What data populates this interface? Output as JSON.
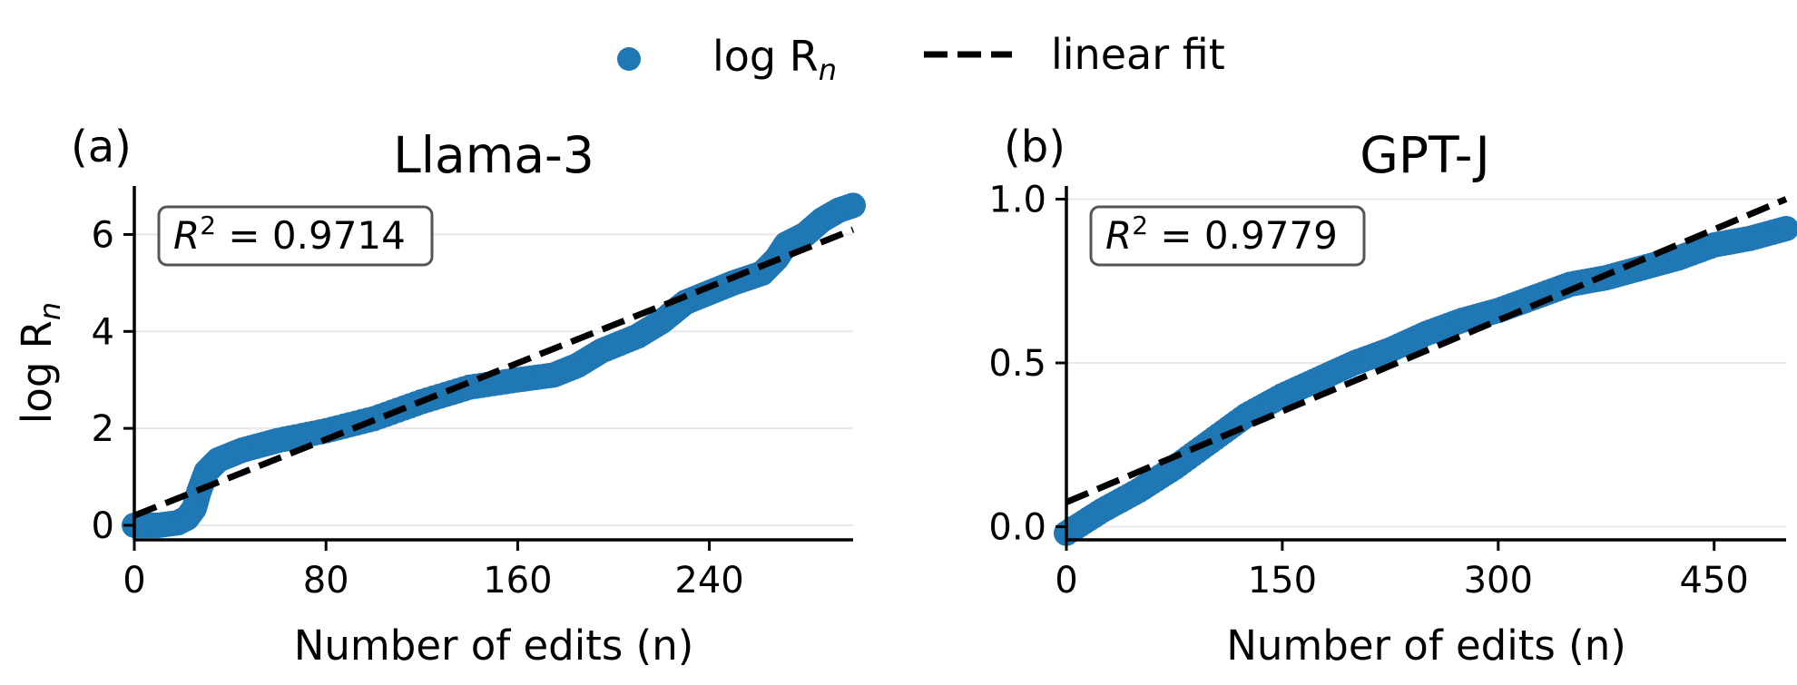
{
  "legend": {
    "series_label_base": "log R",
    "series_label_sub": "n",
    "fit_label": "linear fit",
    "point_color": "#1f77b4",
    "fit_color": "#000000"
  },
  "shared": {
    "ylabel_base": "log R",
    "ylabel_sub": "n"
  },
  "chart_data": [
    {
      "type": "scatter",
      "panel": "(a)",
      "title": "Llama-3",
      "xlabel": "Number of edits (n)",
      "xlim": [
        0,
        300
      ],
      "ylim": [
        -0.3,
        7.0
      ],
      "xticks": [
        0,
        80,
        160,
        240
      ],
      "yticks": [
        0,
        2,
        4,
        6
      ],
      "r2_label": "R",
      "r2_value": "= 0.9714",
      "grid": "y",
      "fit": {
        "x": [
          0,
          300
        ],
        "y": [
          0.2,
          6.1
        ]
      },
      "series": [
        {
          "name": "log R_n",
          "points": [
            [
              0,
              0.0
            ],
            [
              10,
              0.0
            ],
            [
              18,
              0.05
            ],
            [
              22,
              0.15
            ],
            [
              25,
              0.35
            ],
            [
              27,
              0.7
            ],
            [
              30,
              1.1
            ],
            [
              35,
              1.35
            ],
            [
              45,
              1.55
            ],
            [
              60,
              1.75
            ],
            [
              80,
              1.95
            ],
            [
              100,
              2.2
            ],
            [
              120,
              2.55
            ],
            [
              140,
              2.85
            ],
            [
              160,
              3.0
            ],
            [
              175,
              3.1
            ],
            [
              185,
              3.3
            ],
            [
              195,
              3.6
            ],
            [
              210,
              3.9
            ],
            [
              220,
              4.2
            ],
            [
              230,
              4.6
            ],
            [
              240,
              4.8
            ],
            [
              250,
              5.0
            ],
            [
              262,
              5.2
            ],
            [
              268,
              5.5
            ],
            [
              272,
              5.8
            ],
            [
              280,
              6.0
            ],
            [
              287,
              6.3
            ],
            [
              294,
              6.5
            ],
            [
              300,
              6.6
            ]
          ]
        }
      ]
    },
    {
      "type": "scatter",
      "panel": "(b)",
      "title": "GPT-J",
      "xlabel": "Number of edits (n)",
      "xlim": [
        0,
        500
      ],
      "ylim": [
        -0.04,
        1.04
      ],
      "xticks": [
        0,
        150,
        300,
        450
      ],
      "yticks": [
        0.0,
        0.5,
        1.0
      ],
      "ytick_labels": [
        "0.0",
        "0.5",
        "1.0"
      ],
      "r2_label": "R",
      "r2_value": "= 0.9779",
      "grid": "y",
      "fit": {
        "x": [
          0,
          500
        ],
        "y": [
          0.075,
          1.0
        ]
      },
      "series": [
        {
          "name": "log R_n",
          "points": [
            [
              0,
              -0.02
            ],
            [
              25,
              0.05
            ],
            [
              50,
              0.11
            ],
            [
              75,
              0.18
            ],
            [
              100,
              0.26
            ],
            [
              125,
              0.34
            ],
            [
              150,
              0.4
            ],
            [
              175,
              0.45
            ],
            [
              200,
              0.5
            ],
            [
              225,
              0.54
            ],
            [
              250,
              0.59
            ],
            [
              275,
              0.63
            ],
            [
              300,
              0.66
            ],
            [
              325,
              0.7
            ],
            [
              350,
              0.74
            ],
            [
              375,
              0.76
            ],
            [
              400,
              0.79
            ],
            [
              425,
              0.82
            ],
            [
              450,
              0.86
            ],
            [
              475,
              0.88
            ],
            [
              500,
              0.91
            ]
          ]
        }
      ]
    }
  ]
}
